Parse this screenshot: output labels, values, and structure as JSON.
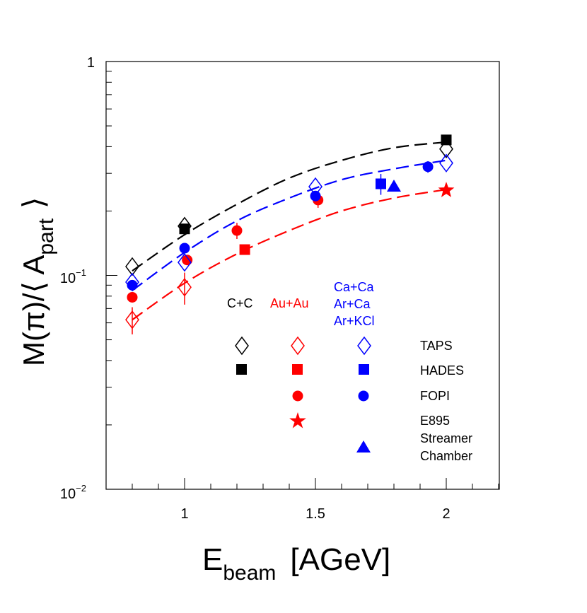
{
  "chart_data": {
    "type": "scatter",
    "y_scale": "log",
    "xlabel": "E",
    "xlabel_sub": "beam",
    "xlabel_unit": "[AGeV]",
    "ylabel": "M(π)/⟨ A",
    "ylabel_sub": "part",
    "ylabel_end": "⟩",
    "xlim": [
      0.7,
      2.2
    ],
    "ylim": [
      0.01,
      1
    ],
    "x_ticks": [
      {
        "value": 1,
        "label": "1"
      },
      {
        "value": 1.5,
        "label": "1.5"
      },
      {
        "value": 2,
        "label": "2"
      }
    ],
    "y_ticks": [
      {
        "value": 1,
        "base": "1",
        "exp": ""
      },
      {
        "value": 0.1,
        "base": "10",
        "exp": "−1"
      },
      {
        "value": 0.01,
        "base": "10",
        "exp": "−2"
      }
    ],
    "legend": {
      "columns": [
        {
          "label": "C+C",
          "color": "#000000"
        },
        {
          "label": "Au+Au",
          "color": "#ff0000"
        },
        {
          "label_lines": [
            "Ca+Ca",
            "Ar+Ca",
            "Ar+KCl"
          ],
          "color": "#0000ff"
        }
      ],
      "rows": [
        {
          "label_lines": [
            "TAPS"
          ],
          "marker": "open-diamond"
        },
        {
          "label_lines": [
            "HADES"
          ],
          "marker": "square"
        },
        {
          "label_lines": [
            "FOPI"
          ],
          "marker": "circle"
        },
        {
          "label_lines": [
            "E895",
            "Streamer",
            "Chamber"
          ],
          "marker": "star"
        }
      ]
    },
    "fits": [
      {
        "system": "C+C",
        "color": "#000000",
        "points": [
          [
            0.8,
            0.105
          ],
          [
            1.0,
            0.155
          ],
          [
            1.2,
            0.215
          ],
          [
            1.4,
            0.285
          ],
          [
            1.6,
            0.345
          ],
          [
            1.8,
            0.395
          ],
          [
            2.0,
            0.42
          ]
        ]
      },
      {
        "system": "Ca+Ca",
        "color": "#0000ff",
        "points": [
          [
            0.8,
            0.085
          ],
          [
            1.0,
            0.128
          ],
          [
            1.2,
            0.18
          ],
          [
            1.4,
            0.23
          ],
          [
            1.6,
            0.28
          ],
          [
            1.8,
            0.315
          ],
          [
            2.0,
            0.345
          ]
        ]
      },
      {
        "system": "Au+Au",
        "color": "#ff0000",
        "points": [
          [
            0.8,
            0.062
          ],
          [
            1.0,
            0.092
          ],
          [
            1.2,
            0.126
          ],
          [
            1.4,
            0.162
          ],
          [
            1.6,
            0.2
          ],
          [
            1.8,
            0.23
          ],
          [
            2.0,
            0.252
          ]
        ]
      }
    ],
    "series": [
      {
        "name": "C+C TAPS",
        "color": "#000000",
        "marker": "open-diamond",
        "points": [
          [
            0.8,
            0.11,
            0
          ],
          [
            1.0,
            0.17,
            0
          ],
          [
            2.0,
            0.39,
            0
          ]
        ]
      },
      {
        "name": "C+C HADES",
        "color": "#000000",
        "marker": "square",
        "points": [
          [
            1.0,
            0.165,
            0
          ],
          [
            2.0,
            0.43,
            0
          ]
        ]
      },
      {
        "name": "Au+Au TAPS",
        "color": "#ff0000",
        "marker": "open-diamond",
        "points": [
          [
            0.8,
            0.062,
            0.009
          ],
          [
            1.0,
            0.088,
            0.015
          ]
        ]
      },
      {
        "name": "Au+Au HADES",
        "color": "#ff0000",
        "marker": "square",
        "points": [
          [
            1.23,
            0.132,
            0
          ]
        ]
      },
      {
        "name": "Au+Au FOPI",
        "color": "#ff0000",
        "marker": "circle",
        "points": [
          [
            0.8,
            0.079,
            0
          ],
          [
            1.01,
            0.118,
            0
          ],
          [
            1.2,
            0.162,
            0.014
          ],
          [
            1.51,
            0.225,
            0.018
          ]
        ]
      },
      {
        "name": "Au+Au E895",
        "color": "#ff0000",
        "marker": "star",
        "points": [
          [
            2.0,
            0.25,
            0
          ]
        ]
      },
      {
        "name": "Ca+Ca TAPS",
        "color": "#0000ff",
        "marker": "open-diamond",
        "points": [
          [
            0.8,
            0.093,
            0
          ],
          [
            1.0,
            0.115,
            0
          ],
          [
            1.5,
            0.26,
            0
          ],
          [
            2.0,
            0.335,
            0
          ]
        ]
      },
      {
        "name": "Ca+Ca HADES",
        "color": "#0000ff",
        "marker": "square",
        "points": [
          [
            1.75,
            0.268,
            0.03
          ]
        ]
      },
      {
        "name": "Ca+Ca FOPI",
        "color": "#0000ff",
        "marker": "circle",
        "points": [
          [
            0.8,
            0.09,
            0
          ],
          [
            1.0,
            0.134,
            0
          ],
          [
            1.5,
            0.235,
            0
          ],
          [
            1.93,
            0.322,
            0.02
          ]
        ]
      },
      {
        "name": "Ar+KCl E895",
        "color": "#0000ff",
        "marker": "triangle",
        "points": [
          [
            1.8,
            0.26,
            0
          ]
        ]
      }
    ]
  }
}
